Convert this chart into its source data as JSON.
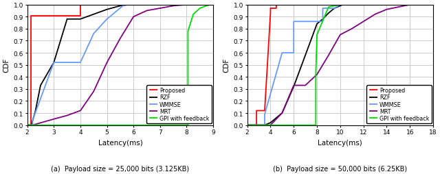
{
  "plot1": {
    "xlabel": "Latency(ms)",
    "ylabel": "CDF",
    "xlim": [
      2,
      9
    ],
    "ylim": [
      0,
      1
    ],
    "xticks": [
      2,
      3,
      4,
      5,
      6,
      7,
      8,
      9
    ],
    "yticks": [
      0,
      0.1,
      0.2,
      0.3,
      0.4,
      0.5,
      0.6,
      0.7,
      0.8,
      0.9,
      1.0
    ],
    "caption": "(a)  Payload size = 25,000 bits (3.125KB)",
    "curves": {
      "Proposed": {
        "color": "red",
        "x": [
          2.0,
          2.15,
          2.15,
          2.35,
          2.35,
          4.0,
          4.0,
          4.05
        ],
        "y": [
          0.0,
          0.0,
          0.91,
          0.91,
          0.91,
          0.91,
          1.0,
          1.0
        ]
      },
      "RZF": {
        "color": "black",
        "x": [
          2.0,
          2.15,
          2.3,
          2.5,
          3.0,
          3.5,
          4.0,
          4.5,
          5.0,
          5.5,
          5.8
        ],
        "y": [
          0.0,
          0.0,
          0.11,
          0.33,
          0.52,
          0.88,
          0.88,
          0.92,
          0.96,
          0.99,
          1.0
        ]
      },
      "WMMSE": {
        "color": "#6699ff",
        "x": [
          2.0,
          2.2,
          2.2,
          2.5,
          3.0,
          4.0,
          4.0,
          4.5,
          5.0,
          5.6,
          5.8
        ],
        "y": [
          0.0,
          0.0,
          0.04,
          0.22,
          0.52,
          0.52,
          0.52,
          0.76,
          0.88,
          0.99,
          1.0
        ]
      },
      "MRT": {
        "color": "purple",
        "x": [
          2.0,
          2.2,
          3.0,
          3.5,
          4.0,
          4.5,
          5.0,
          5.5,
          6.0,
          6.5,
          7.0,
          7.5,
          8.0
        ],
        "y": [
          0.0,
          0.0,
          0.05,
          0.08,
          0.12,
          0.28,
          0.52,
          0.72,
          0.9,
          0.95,
          0.97,
          0.99,
          1.0
        ]
      },
      "GPI with feedback": {
        "color": "#00dd00",
        "x": [
          2.0,
          8.05,
          8.05,
          8.25,
          8.5,
          8.75,
          8.9
        ],
        "y": [
          0.0,
          0.0,
          0.78,
          0.92,
          0.97,
          0.99,
          1.0
        ]
      }
    }
  },
  "plot2": {
    "xlabel": "Latency(ms)",
    "ylabel": "CDF",
    "xlim": [
      2,
      18
    ],
    "ylim": [
      0,
      1
    ],
    "xticks": [
      2,
      4,
      6,
      8,
      10,
      12,
      14,
      16,
      18
    ],
    "yticks": [
      0,
      0.1,
      0.2,
      0.3,
      0.4,
      0.5,
      0.6,
      0.7,
      0.8,
      0.9,
      1.0
    ],
    "caption": "(b)  Payload size = 50,000 bits (6.25KB)",
    "curves": {
      "Proposed": {
        "color": "red",
        "x": [
          2.0,
          2.8,
          2.8,
          3.5,
          4.0,
          4.0,
          4.5,
          4.5,
          5.5
        ],
        "y": [
          0.0,
          0.0,
          0.12,
          0.12,
          0.93,
          0.97,
          0.97,
          1.0,
          1.0
        ]
      },
      "RZF": {
        "color": "black",
        "x": [
          2.0,
          3.5,
          4.0,
          5.0,
          6.0,
          7.0,
          8.0,
          8.5,
          9.0,
          9.5,
          10.0,
          10.2
        ],
        "y": [
          0.0,
          0.0,
          0.02,
          0.1,
          0.32,
          0.58,
          0.84,
          0.88,
          0.93,
          0.97,
          0.99,
          1.0
        ]
      },
      "WMMSE": {
        "color": "#6699ff",
        "x": [
          2.0,
          3.5,
          3.5,
          5.0,
          6.0,
          6.0,
          8.5,
          8.5,
          9.5,
          10.0
        ],
        "y": [
          0.0,
          0.0,
          0.09,
          0.6,
          0.6,
          0.86,
          0.86,
          0.97,
          0.97,
          1.0
        ]
      },
      "MRT": {
        "color": "purple",
        "x": [
          2.0,
          4.0,
          5.0,
          6.0,
          7.0,
          8.0,
          9.0,
          10.0,
          11.0,
          12.0,
          13.0,
          14.0,
          15.0,
          16.0
        ],
        "y": [
          0.0,
          0.0,
          0.1,
          0.33,
          0.33,
          0.42,
          0.58,
          0.75,
          0.8,
          0.86,
          0.92,
          0.96,
          0.98,
          1.0
        ]
      },
      "GPI with feedback": {
        "color": "#00dd00",
        "x": [
          2.0,
          7.9,
          7.9,
          8.0,
          9.0,
          9.5,
          10.0,
          10.2
        ],
        "y": [
          0.0,
          0.0,
          0.42,
          0.75,
          0.98,
          0.99,
          1.0,
          1.0
        ]
      }
    }
  },
  "legend_order": [
    "Proposed",
    "RZF",
    "WMMSE",
    "MRT",
    "GPI with feedback"
  ],
  "bg_color": "white",
  "grid_color": "#cccccc",
  "linewidth": 1.3
}
